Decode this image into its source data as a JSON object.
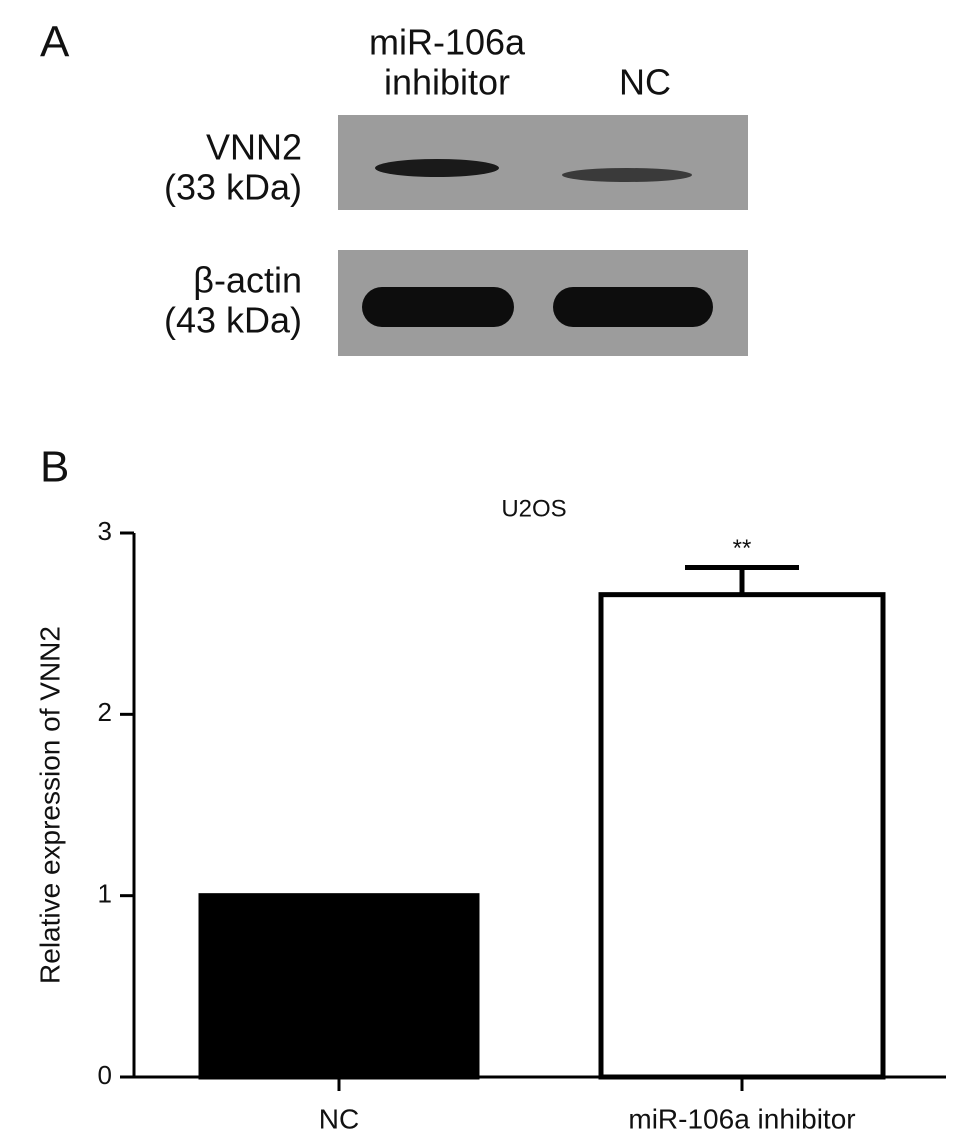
{
  "panel_a": {
    "label": "A",
    "lanes": [
      [
        "miR-106a",
        "inhibitor"
      ],
      [
        "NC"
      ]
    ],
    "rows": [
      {
        "name": "VNN2",
        "size": "(33 kDa)"
      },
      {
        "name": "β-actin",
        "size": "(43 kDa)"
      }
    ]
  },
  "chart_data": {
    "type": "bar",
    "panel_label": "B",
    "title": "U2OS",
    "y_label": "Relative expression of VNN2",
    "categories": [
      "NC",
      "miR-106a inhibitor"
    ],
    "values": [
      1.0,
      2.66
    ],
    "errors": [
      null,
      0.15
    ],
    "colors": [
      "#000000",
      "#ffffff"
    ],
    "annotations": [
      null,
      "**"
    ],
    "ylim": [
      0,
      3
    ],
    "yticks": [
      0,
      1,
      2,
      3
    ]
  }
}
